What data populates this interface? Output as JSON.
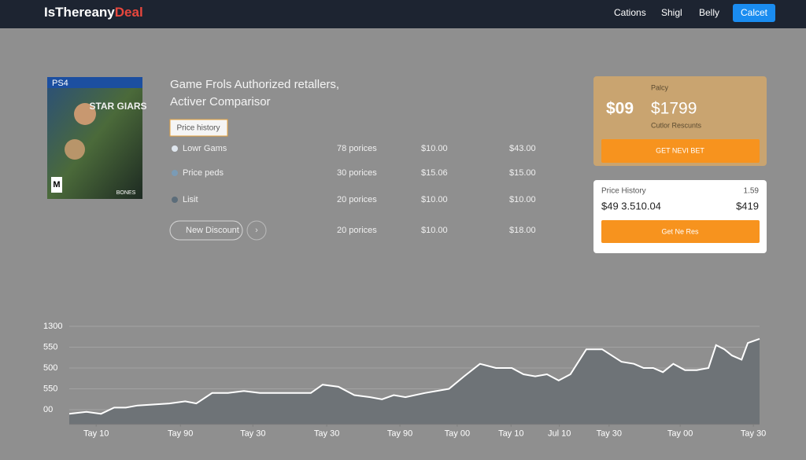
{
  "header": {
    "logo": "IsThereany",
    "logo_accent": "Deal",
    "nav": [
      "Cations",
      "Shigl",
      "Belly"
    ],
    "button": "Calcet"
  },
  "product": {
    "cover": {
      "platform": "PS4",
      "title": "STAR GIARS",
      "rating": "M",
      "badge": "BONES"
    },
    "title_lines": [
      "Game Frols Authorized retallers,",
      "Activer Comparisor"
    ],
    "tab": "Price history",
    "rows": [
      [
        "Lowr Gams",
        "78 porices",
        "$10.00",
        "$43.00"
      ],
      [
        "Price peds",
        "30 porices",
        "$15.06",
        "$15.00"
      ],
      [
        "Lisit",
        "20 porices",
        "$10.00",
        "$10.00"
      ],
      [
        "New Discount",
        "20 porices",
        "$10.00",
        "$18.00"
      ]
    ]
  },
  "deal_card": {
    "label": "Palcy",
    "price": "$09",
    "old_price": "$1799",
    "note": "Cutlor Rescunts",
    "button": "GET NEVI BET"
  },
  "history_card": {
    "label": "Price History",
    "value": "1.59",
    "range": "$49 3.510.04",
    "price": "$419",
    "button": "Get Ne Res"
  },
  "chart_data": {
    "type": "area",
    "color": "#6e7377",
    "line_color": "#ffffff",
    "x": [
      0,
      2.5,
      4.6,
      6.5,
      8.2,
      9.9,
      14.5,
      16.8,
      18.4,
      20.7,
      23.0,
      25.3,
      27.6,
      31.0,
      33.3,
      35.0,
      36.7,
      39.0,
      41.3,
      43.6,
      45.3,
      47.0,
      48.7,
      51.5,
      55.0,
      57.2,
      59.5,
      61.8,
      64.1,
      65.8,
      67.5,
      69.2,
      70.9,
      72.6,
      74.9,
      77.2,
      80.0,
      81.8,
      83.2,
      84.6,
      86.0,
      87.5,
      89.2,
      90.9,
      92.6,
      93.7,
      94.9,
      96.0,
      97.4,
      98.3,
      100
    ],
    "values": [
      -0.2,
      -0.1,
      -0.2,
      0.1,
      0.1,
      0.2,
      0.3,
      0.4,
      0.3,
      0.8,
      0.8,
      0.9,
      0.8,
      0.8,
      0.8,
      0.8,
      1.2,
      1.1,
      0.7,
      0.6,
      0.5,
      0.7,
      0.6,
      0.8,
      1.0,
      1.6,
      2.2,
      2.0,
      2.0,
      1.7,
      1.6,
      1.7,
      1.4,
      1.7,
      2.9,
      2.9,
      2.3,
      2.2,
      2.0,
      2.0,
      1.8,
      2.2,
      1.9,
      1.9,
      2.0,
      3.1,
      2.9,
      2.6,
      2.4,
      3.2,
      3.4
    ],
    "xlim": [
      0,
      100
    ],
    "xticks": [
      {
        "value": 3.9,
        "label": "Tay 10"
      },
      {
        "value": 16.1,
        "label": "Tay 90"
      },
      {
        "value": 26.6,
        "label": "Tay 30"
      },
      {
        "value": 37.3,
        "label": "Tay 30"
      },
      {
        "value": 47.9,
        "label": "Tay 90"
      },
      {
        "value": 56.2,
        "label": "Tay 00"
      },
      {
        "value": 64.0,
        "label": "Tay 10"
      },
      {
        "value": 71.0,
        "label": "Jul 10"
      },
      {
        "value": 78.2,
        "label": "Tay 30"
      },
      {
        "value": 88.5,
        "label": "Tay 00"
      },
      {
        "value": 99.1,
        "label": "Tay 30"
      }
    ],
    "ylim": [
      -0.7,
      4.5
    ],
    "yticks": [
      {
        "value": 4,
        "label": "1300"
      },
      {
        "value": 3,
        "label": "550"
      },
      {
        "value": 2,
        "label": "500"
      },
      {
        "value": 1,
        "label": "550"
      },
      {
        "value": 0,
        "label": "00"
      }
    ],
    "grid": true
  }
}
